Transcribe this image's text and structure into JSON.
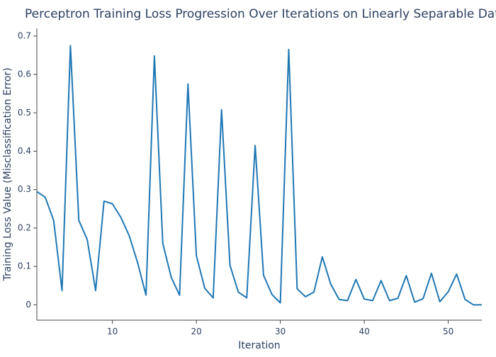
{
  "chart_data": {
    "type": "line",
    "title": "Perceptron Training Loss Progression Over Iterations on Linearly Separable Data",
    "xlabel": "Iteration",
    "ylabel": "Training Loss Value (Misclassification Error)",
    "xlim": [
      1,
      54
    ],
    "ylim": [
      -0.04,
      0.72
    ],
    "xticks": [
      10,
      20,
      30,
      40,
      50
    ],
    "yticks": [
      0,
      0.1,
      0.2,
      0.3,
      0.4,
      0.5,
      0.6,
      0.7
    ],
    "grid": false,
    "series": [
      {
        "color": "#1f77b4",
        "x": [
          1,
          2,
          3,
          4,
          5,
          6,
          7,
          8,
          9,
          10,
          11,
          12,
          13,
          14,
          15,
          16,
          17,
          18,
          19,
          20,
          21,
          22,
          23,
          24,
          25,
          26,
          27,
          28,
          29,
          30,
          31,
          32,
          33,
          34,
          35,
          36,
          37,
          38,
          39,
          40,
          41,
          42,
          43,
          44,
          45,
          46,
          47,
          48,
          49,
          50,
          51,
          52,
          53,
          54
        ],
        "values": [
          0.295,
          0.28,
          0.22,
          0.037,
          0.675,
          0.22,
          0.17,
          0.037,
          0.27,
          0.263,
          0.228,
          0.18,
          0.11,
          0.025,
          0.648,
          0.16,
          0.072,
          0.025,
          0.575,
          0.128,
          0.043,
          0.018,
          0.508,
          0.103,
          0.033,
          0.018,
          0.415,
          0.077,
          0.027,
          0.005,
          0.665,
          0.042,
          0.021,
          0.033,
          0.125,
          0.054,
          0.014,
          0.011,
          0.066,
          0.015,
          0.011,
          0.063,
          0.011,
          0.017,
          0.076,
          0.007,
          0.016,
          0.082,
          0.008,
          0.034,
          0.08,
          0.014,
          0.0,
          0.0
        ]
      }
    ]
  }
}
